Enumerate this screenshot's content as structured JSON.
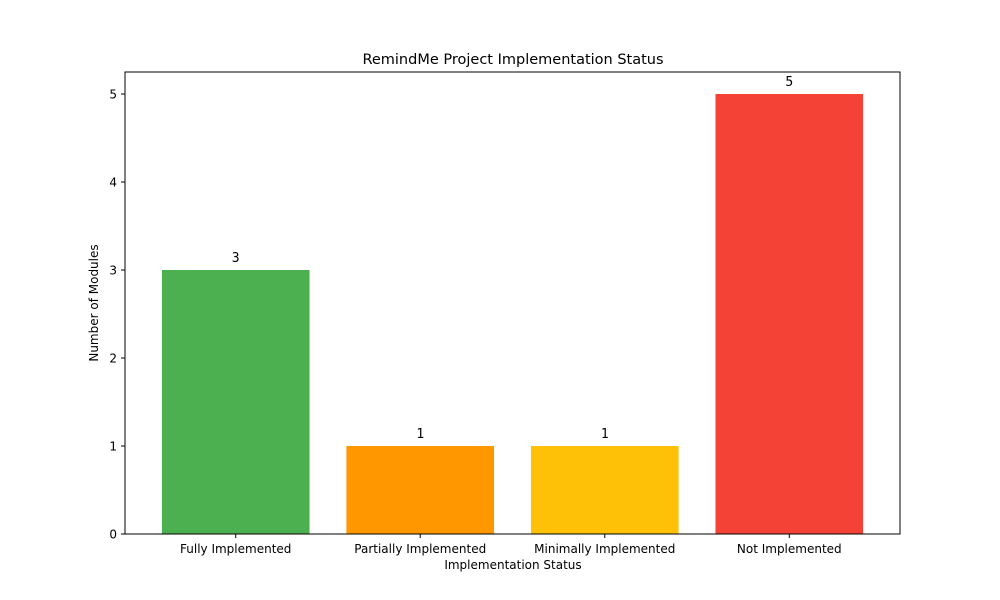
{
  "chart_data": {
    "type": "bar",
    "title": "RemindMe Project Implementation Status",
    "xlabel": "Implementation Status",
    "ylabel": "Number of Modules",
    "categories": [
      "Fully Implemented",
      "Partially Implemented",
      "Minimally Implemented",
      "Not Implemented"
    ],
    "values": [
      3,
      1,
      1,
      5
    ],
    "data_labels": [
      "3",
      "1",
      "1",
      "5"
    ],
    "colors": [
      "#4caf50",
      "#ff9800",
      "#ffc107",
      "#f44336"
    ],
    "ylim": [
      0,
      5.25
    ],
    "yticks": [
      0,
      1,
      2,
      3,
      4,
      5
    ],
    "ytick_labels": [
      "0",
      "1",
      "2",
      "3",
      "4",
      "5"
    ],
    "grid": false,
    "legend": "none"
  }
}
